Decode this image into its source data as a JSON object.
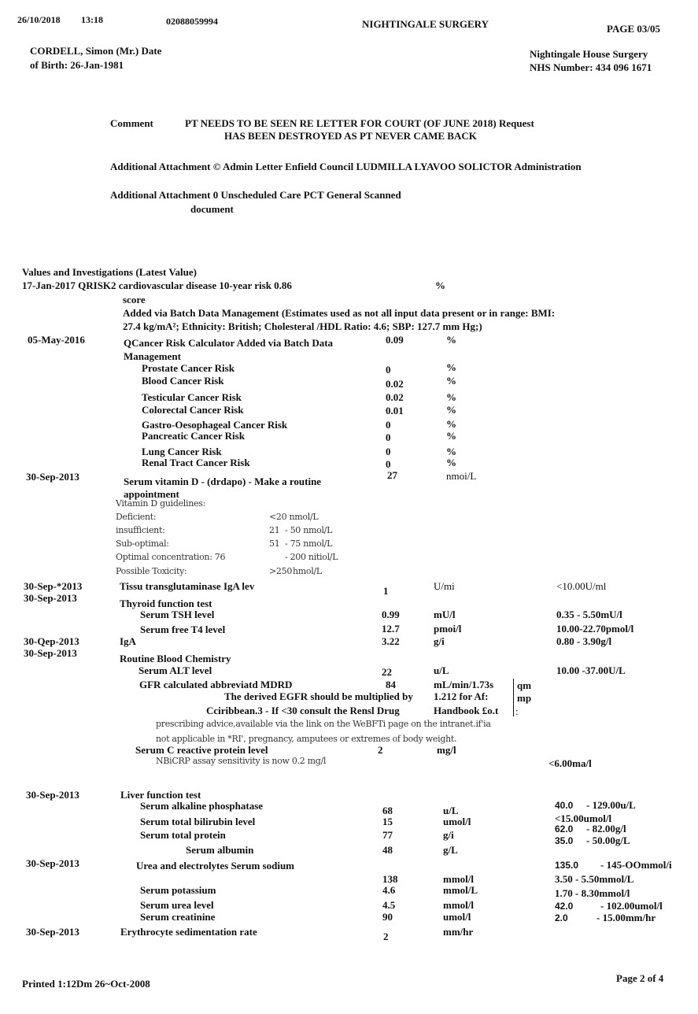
{
  "fax_header": {
    "date": "26/10/2018",
    "time": "13:18",
    "number": "02088059994",
    "surgery": "NIGHTINGALE SURGERY",
    "page": "PAGE 03/05"
  },
  "patient": {
    "line1": "CORDELL, Simon (Mr.) Date",
    "line2": "of Birth: 26-Jan-1981",
    "practice": "Nightingale House Surgery",
    "nhs": "NHS Number: 434 096 1671"
  },
  "comment": {
    "label": "Comment",
    "line1": "PT NEEDS TO BE SEEN RE LETTER FOR COURT (OF JUNE 2018) Request",
    "line2": "HAS BEEN DESTROYED AS PT NEVER CAME BACK"
  },
  "attachments": [
    {
      "line1": "Additional Attachment © Admin Letter Enfield Council LUDMILLA LYAVOO SOLICTOR Administration"
    },
    {
      "line1": "Additional Attachment 0 Unscheduled Care PCT General Scanned",
      "line2": "document"
    }
  ],
  "values": {
    "title": "Values and Investigations (Latest Value)",
    "qrisk": {
      "line1": "17-Jan-2017 QRISK2 cardiovascular disease 10-year risk 0.86",
      "unit": "%",
      "line2": "score",
      "note1": "Added via Batch Data Management (Estimates used as not all input data present or in range: BMI:",
      "note2": "27.4 kg/mA²; Ethnicity: British; Cholesteral /HDL Ratio: 4.6; SBP: 127.7 mm Hg;)"
    },
    "qcancer": {
      "date": "05-May-2016",
      "line1": "QCancer Risk Calculator Added via Batch Data",
      "line2": "Management",
      "value": "0.09",
      "unit": "%",
      "items": [
        {
          "name": "Prostate Cancer Risk",
          "value": "0",
          "unit": "%"
        },
        {
          "name": "Blood Cancer Risk",
          "value": "0.02",
          "unit": "%"
        },
        {
          "name": "Testicular Cancer Risk",
          "value": "0.02",
          "unit": "%"
        },
        {
          "name": "Colorectal Cancer Risk",
          "value": "0.01",
          "unit": "%"
        },
        {
          "name": "Gastro-Oesophageal Cancer Risk",
          "value": "0",
          "unit": "%"
        },
        {
          "name": "Pancreatic Cancer Risk",
          "value": "0",
          "unit": "%"
        },
        {
          "name": "Lung Cancer Risk",
          "value": "0",
          "unit": "%"
        },
        {
          "name": "Renal Tract Cancer Risk",
          "value": "0",
          "unit": "%"
        }
      ]
    },
    "vitd": {
      "date": "30-Sep-2013",
      "line1": "Serum vitamin D - (drdapo) - Make a routine",
      "line2": "appointment",
      "value": "27",
      "unit": "nmoi/L",
      "guidelines_title": "Vitamin D guidelines:",
      "guidelines": [
        {
          "label": "Deficient:",
          "a": "<20 nmol/L",
          "b": ""
        },
        {
          "label": "insufficient:",
          "a": "21",
          "b": "- 50 nmol/L"
        },
        {
          "label": "Sub-optimal:",
          "a": "51",
          "b": "- 75 nmol/L"
        },
        {
          "label": "Optimal concentration: 76",
          "a": "",
          "b": "- 200 nitiol/L"
        },
        {
          "label": "Possible Toxicity:",
          "a": ">250",
          "b": "hmol/L"
        }
      ]
    },
    "ttg": {
      "date": "30-Sep-*2013",
      "name": "Tissu transglutaminase IgA lev",
      "value": "1",
      "unit": "U/mi",
      "range": "<10.00U/ml"
    },
    "thyroid": {
      "date": "30-Sep-2013",
      "name": "Thyroid function test",
      "tsh": {
        "name": "Serum TSH level",
        "value": "0.99",
        "unit": "mU/l",
        "range": "0.35 - 5.50mU/l"
      },
      "t4": {
        "name": "Serum free T4 level",
        "value": "12.7",
        "unit": "pmoi/l",
        "range": "10.00-22.70pmol/l"
      }
    },
    "iga": {
      "date": "30-Qep-2013",
      "name": "IgA",
      "value": "3.22",
      "unit": "g/i",
      "range": "0.80 - 3.90g/l"
    },
    "chem": {
      "date": "30-Sep-2013",
      "name": "Routine Blood Chemistry",
      "alt": {
        "name": "Serum ALT level",
        "value": "22",
        "unit": "u/L",
        "range": "10.00 -37.00U/L"
      },
      "gfr": {
        "name": "GFR calculated abbreviatd MDRD",
        "value": "84",
        "unit": "mL/min/1.73s",
        "side1": "qm",
        "side2": "mp",
        "side3": ":",
        "note1a": "The derived EGFR should be multiplied by",
        "note1b": "1.212 for Af:",
        "note2a": "Cciribbean.3 - If <30 consult the Rensl Drug",
        "note2b": "Handbook £o.t",
        "note3": "prescribing advice,available via the link on the WeBFTi page on the intranet.if'ia",
        "note4": "not applicable in *RI', pregnancy, amputees or extremes of body weight."
      },
      "crp": {
        "name": "Serum C reactive protein level",
        "value": "2",
        "unit": "mg/l",
        "note": "NBiCRP assay sensitivity is now 0.2 mg/l",
        "range": "<6.00ma/l"
      }
    },
    "lft": {
      "date": "30-Sep-2013",
      "name": "Liver function test",
      "items": [
        {
          "name": "Serum alkaline phosphatase",
          "value": "68",
          "unit": "u/L",
          "range_low": "40.0",
          "range_high": "- 129.00u/L"
        },
        {
          "name": "Serum total bilirubin level",
          "value": "15",
          "unit": "umol/l",
          "range": "<15.00umol/l"
        },
        {
          "name": "Serum total protein",
          "value": "77",
          "unit": "g/i",
          "range_low": "62.0",
          "range_high": "- 82.00g/l"
        },
        {
          "name": "Serum albumin",
          "value": "48",
          "unit": "g/L",
          "range_low": "35.0",
          "range_high": "- 50.00g/L"
        }
      ]
    },
    "ue": {
      "date": "30-Sep-2013",
      "name": "Urea and electrolytes Serum sodium",
      "value": "138",
      "unit": "mmol/l",
      "range_low": "135.0",
      "range_high": "- 145-OOmmol/i",
      "items": [
        {
          "name": "Serum potassium",
          "value": "4.6",
          "unit": "mmol/L",
          "range": "3.50 - 5.50mmol/L"
        },
        {
          "name": "Serum urea level",
          "value": "4.5",
          "unit": "mmol/l",
          "range": "1.70 - 8.30mmol/l"
        },
        {
          "name": "Serum creatinine",
          "value": "90",
          "unit": "umol/l",
          "range_low": "42.0",
          "range_high": "- 102.00umol/l"
        }
      ]
    },
    "esr": {
      "date": "30-Sep-2013",
      "name": "Erythrocyte sedimentation rate",
      "value": "2",
      "unit": "mm/hr",
      "range_low": "2.0",
      "range_high": "- 15.00mm/hr"
    }
  },
  "footer": {
    "printed": "Printed 1:12Dm 26~Oct-2008",
    "page": "Page 2 of 4"
  }
}
